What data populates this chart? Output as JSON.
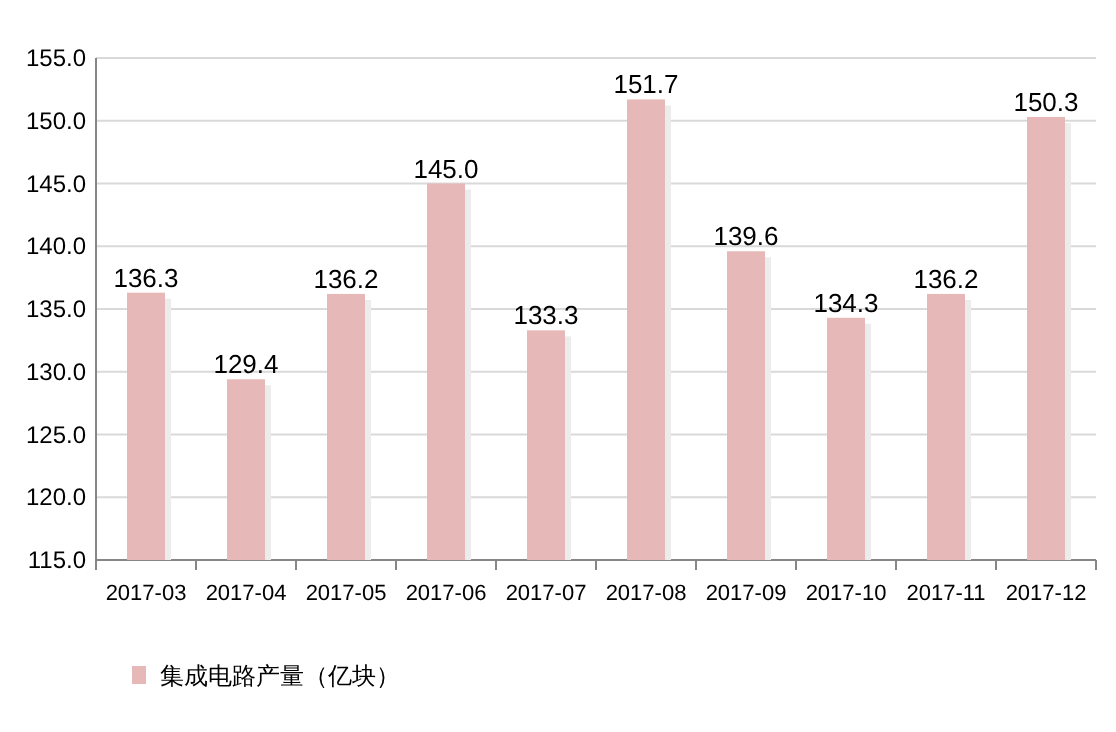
{
  "chart_data": {
    "type": "bar",
    "categories": [
      "2017-03",
      "2017-04",
      "2017-05",
      "2017-06",
      "2017-07",
      "2017-08",
      "2017-09",
      "2017-10",
      "2017-11",
      "2017-12"
    ],
    "series": [
      {
        "name": "集成电路产量（亿块）",
        "color": "#e6b9b8",
        "values": [
          136.3,
          129.4,
          136.2,
          145.0,
          133.3,
          151.7,
          139.6,
          134.3,
          136.2,
          150.3
        ],
        "value_labels": [
          "136.3",
          "129.4",
          "136.2",
          "145.0",
          "133.3",
          "151.7",
          "139.6",
          "134.3",
          "136.2",
          "150.3"
        ]
      }
    ],
    "ylim": [
      115,
      155
    ],
    "yticks": [
      {
        "value": 115,
        "label": "115.0"
      },
      {
        "value": 120,
        "label": "120.0"
      },
      {
        "value": 125,
        "label": "125.0"
      },
      {
        "value": 130,
        "label": "130.0"
      },
      {
        "value": 135,
        "label": "135.0"
      },
      {
        "value": 140,
        "label": "140.0"
      },
      {
        "value": 145,
        "label": "145.0"
      },
      {
        "value": 150,
        "label": "150.0"
      },
      {
        "value": 155,
        "label": "155.0"
      }
    ],
    "grid": "y",
    "legend": "bottom"
  }
}
